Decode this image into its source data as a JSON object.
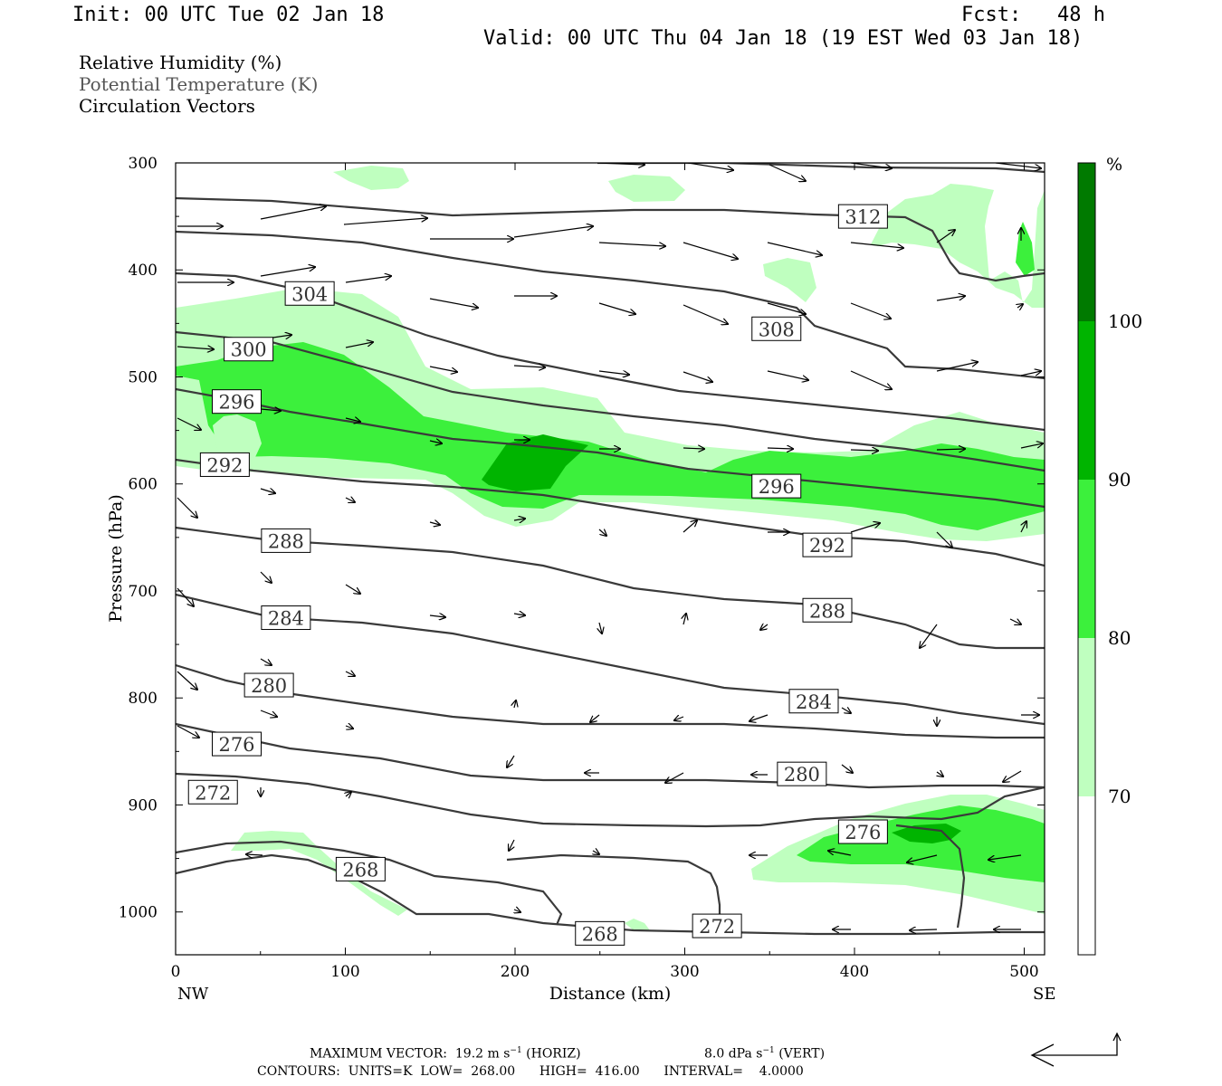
{
  "header": {
    "init": "Init: 00 UTC Tue 02 Jan 18",
    "fcst": "Fcst:   48 h",
    "valid": "Valid: 00 UTC Thu 04 Jan 18 (19 EST Wed 03 Jan 18)"
  },
  "legend": {
    "rh": "Relative Humidity (%)",
    "theta": "Potential Temperature (K)",
    "vectors": "Circulation Vectors"
  },
  "footer": {
    "max_vector": "MAXIMUM VECTOR:  19.2 m s",
    "horiz": "(HORIZ)",
    "vert": "8.0 dPa s",
    "vert_unit": "(VERT)",
    "contours": "CONTOURS:  UNITS=K  LOW=  268.00      HIGH=  416.00      INTERVAL=    4.0000"
  },
  "colors": {
    "rh_70": "#bfffbf",
    "rh_80": "#3cf03c",
    "rh_90": "#00b400",
    "rh_100": "#007a00",
    "contour": "#3a3a3a"
  },
  "chart_data": {
    "type": "contour",
    "xlabel": "Distance (km)",
    "ylabel": "Pressure (hPa)",
    "xlim": [
      0,
      512
    ],
    "ylim": [
      1040,
      300
    ],
    "x_ticks": [
      0,
      100,
      200,
      300,
      400,
      500
    ],
    "y_ticks": [
      300,
      400,
      500,
      600,
      700,
      800,
      900,
      1000
    ],
    "x_endpoints": {
      "left": "NW",
      "right": "SE"
    },
    "colorbar": {
      "unit": "%",
      "levels": [
        70,
        80,
        90,
        100
      ]
    },
    "contour_labels": [
      {
        "value": "312",
        "x": 405,
        "p": 350
      },
      {
        "value": "308",
        "x": 354,
        "p": 455
      },
      {
        "value": "304",
        "x": 79,
        "p": 422
      },
      {
        "value": "300",
        "x": 43,
        "p": 474
      },
      {
        "value": "296",
        "x": 36,
        "p": 523
      },
      {
        "value": "296",
        "x": 354,
        "p": 602
      },
      {
        "value": "292",
        "x": 29,
        "p": 582
      },
      {
        "value": "292",
        "x": 384,
        "p": 657
      },
      {
        "value": "288",
        "x": 65,
        "p": 653
      },
      {
        "value": "288",
        "x": 384,
        "p": 718
      },
      {
        "value": "284",
        "x": 65,
        "p": 725
      },
      {
        "value": "284",
        "x": 376,
        "p": 803
      },
      {
        "value": "280",
        "x": 55,
        "p": 788
      },
      {
        "value": "280",
        "x": 369,
        "p": 871
      },
      {
        "value": "276",
        "x": 36,
        "p": 843
      },
      {
        "value": "276",
        "x": 405,
        "p": 925
      },
      {
        "value": "272",
        "x": 22,
        "p": 888
      },
      {
        "value": "272",
        "x": 319,
        "p": 1013
      },
      {
        "value": "268",
        "x": 109,
        "p": 960
      },
      {
        "value": "268",
        "x": 250,
        "p": 1020
      }
    ]
  }
}
